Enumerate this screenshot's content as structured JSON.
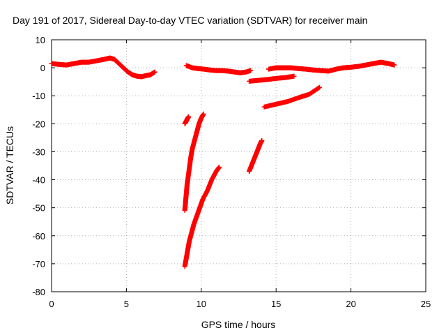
{
  "chart_data": {
    "type": "scatter",
    "title": "Day 191 of 2017, Sidereal Day-to-day VTEC variation (SDTVAR) for receiver main",
    "xlabel": "GPS time / hours",
    "ylabel": "SDTVAR / TECUs",
    "xlim": [
      0,
      25
    ],
    "ylim": [
      -80,
      10
    ],
    "xticks": [
      "0",
      "5",
      "10",
      "15",
      "20",
      "25"
    ],
    "yticks": [
      "10",
      "0",
      "-10",
      "-20",
      "-30",
      "-40",
      "-50",
      "-60",
      "-70",
      "-80"
    ],
    "grid": true,
    "marker": "+",
    "color": "#ff0000",
    "series": [
      {
        "x": [
          0.0,
          0.5,
          1.0,
          1.5,
          2.0,
          2.5,
          3.0,
          3.5,
          3.9,
          4.2,
          4.5,
          4.8,
          5.1,
          5.4,
          5.7,
          6.0,
          6.3,
          6.6,
          6.9
        ],
        "y": [
          1.5,
          1.2,
          1.0,
          1.5,
          2.0,
          2.0,
          2.5,
          3.0,
          3.5,
          3.0,
          1.5,
          0.0,
          -1.5,
          -2.5,
          -3.0,
          -3.2,
          -2.8,
          -2.5,
          -1.5
        ]
      },
      {
        "x": [
          9.0,
          9.4,
          9.8,
          10.2,
          10.6,
          11.0,
          11.4,
          11.8,
          12.2,
          12.6,
          13.0,
          13.3
        ],
        "y": [
          0.8,
          0.0,
          -0.3,
          -0.5,
          -0.8,
          -1.0,
          -1.0,
          -1.2,
          -1.5,
          -1.8,
          -1.5,
          -1.0
        ]
      },
      {
        "x": [
          13.2,
          13.8,
          14.4,
          15.0,
          15.6,
          16.2
        ],
        "y": [
          -4.8,
          -4.5,
          -4.2,
          -3.8,
          -3.5,
          -3.0
        ]
      },
      {
        "x": [
          14.2,
          15.0,
          15.8,
          16.6,
          17.2,
          17.9
        ],
        "y": [
          -14.0,
          -13.0,
          -12.0,
          -10.5,
          -9.5,
          -7.0
        ]
      },
      {
        "x": [
          14.5,
          15.0,
          15.5,
          16.0,
          16.5,
          17.0,
          17.5,
          18.0,
          18.5,
          19.0,
          19.5,
          20.0,
          20.5,
          21.0,
          21.5,
          22.0,
          22.5,
          22.9
        ],
        "y": [
          -0.5,
          0.0,
          0.0,
          0.0,
          -0.3,
          -0.5,
          -0.8,
          -1.0,
          -1.2,
          -0.5,
          0.0,
          0.2,
          0.5,
          1.0,
          1.5,
          2.0,
          1.5,
          1.0
        ]
      },
      {
        "x": [
          8.9,
          9.0,
          9.05,
          9.1,
          9.15
        ],
        "y": [
          -20.0,
          -19.0,
          -18.5,
          -18.0,
          -17.5
        ]
      },
      {
        "x": [
          8.9,
          8.95,
          9.0,
          9.05,
          9.1,
          9.2,
          9.3,
          9.4,
          9.55,
          9.7,
          9.85,
          10.0,
          10.15
        ],
        "y": [
          -51.0,
          -48.0,
          -45.0,
          -42.0,
          -40.0,
          -36.0,
          -32.0,
          -29.0,
          -26.0,
          -23.0,
          -20.0,
          -18.0,
          -16.5
        ]
      },
      {
        "x": [
          8.9,
          9.0,
          9.1,
          9.2,
          9.35,
          9.5,
          9.7,
          9.9,
          10.1,
          10.4,
          10.7,
          11.0,
          11.2
        ],
        "y": [
          -71.0,
          -68.0,
          -65.0,
          -62.0,
          -59.0,
          -56.0,
          -53.0,
          -50.0,
          -47.0,
          -44.0,
          -40.0,
          -37.0,
          -35.5
        ]
      },
      {
        "x": [
          13.2,
          13.35,
          13.5,
          13.65,
          13.8,
          13.95,
          14.05
        ],
        "y": [
          -37.0,
          -35.0,
          -33.0,
          -31.0,
          -29.0,
          -27.0,
          -26.0
        ]
      }
    ]
  }
}
